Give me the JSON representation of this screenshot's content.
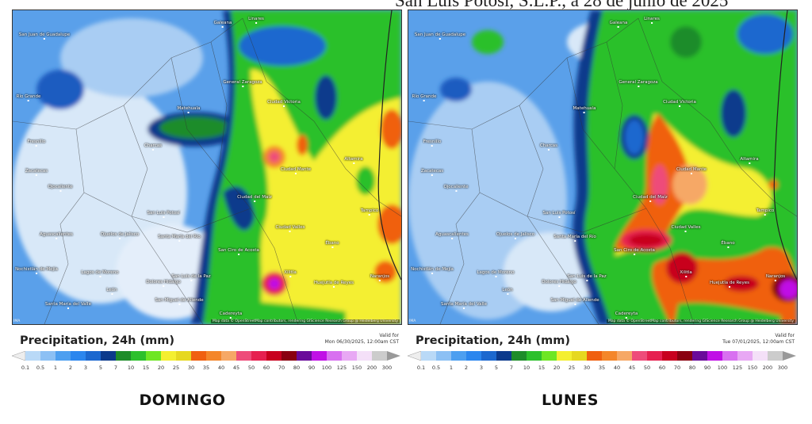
{
  "header": {
    "text": "San Luis Potosí, S.L.P., a 28 de junio de 2025"
  },
  "map_common": {
    "attribution": "Map data © OpenStreetMap contributors, rendering GIScience Research Group @ Heidelberg University",
    "corner_label": "IMA",
    "cities": [
      "San Juan de Guadalupe",
      "Galeana",
      "Linares",
      "Río Grande",
      "General Zaragoza",
      "Ciudad Victoria",
      "Matehuala",
      "Fresnillo",
      "Charcas",
      "Altamira",
      "Zacatecas",
      "Ciudad Mante",
      "Ojocaliente",
      "Ciudad del Maíz",
      "San Luis Potosí",
      "Tampico",
      "Aguascalientes",
      "Ojuelos de Jalisco",
      "Santa María del Río",
      "Ciudad Valles",
      "Ébano",
      "San Ciro de Acosta",
      "Nochistlán de Mejía",
      "Lagos de Moreno",
      "San Luis de la Paz",
      "Xilitla",
      "Naranjos",
      "Dolores Hidalgo",
      "Huejutla de Reyes",
      "León",
      "San Miguel de Allende",
      "Santa María del Valle",
      "Cadereyta"
    ]
  },
  "legend": {
    "title": "Precipitation, 24h (mm)",
    "valid_label": "Valid for",
    "ticks": [
      "0.1",
      "0.5",
      "1",
      "2",
      "3",
      "5",
      "7",
      "10",
      "15",
      "20",
      "25",
      "30",
      "35",
      "40",
      "45",
      "50",
      "60",
      "70",
      "80",
      "90",
      "100",
      "125",
      "150",
      "200",
      "300"
    ],
    "colors": [
      "#b9d9f7",
      "#8cc0f4",
      "#4d9ff0",
      "#2b86ee",
      "#1c68cf",
      "#0c3a8c",
      "#1e8c2a",
      "#2cc02c",
      "#6ee624",
      "#f4ef30",
      "#e6d820",
      "#f06010",
      "#f4862a",
      "#f6a866",
      "#ee4c7a",
      "#e62050",
      "#c8001e",
      "#8a0010",
      "#6a0a9a",
      "#c010e6",
      "#d870f0",
      "#e8a8f4",
      "#f4e0f8",
      "#cccccc"
    ]
  },
  "panels": [
    {
      "day": "DOMINGO",
      "valid": "Mon 06/30/2025, 12:00am CST"
    },
    {
      "day": "LUNES",
      "valid": "Tue 07/01/2025, 12:00am CST"
    }
  ]
}
